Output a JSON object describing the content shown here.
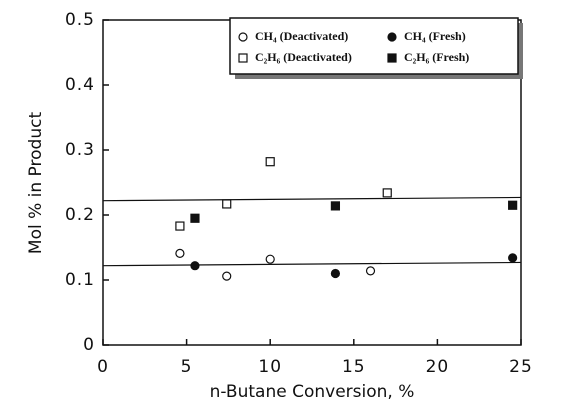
{
  "chart_data": {
    "type": "scatter",
    "xlabel": "n-Butane Conversion, %",
    "ylabel": "Mol % in Product",
    "xlim": [
      0,
      25
    ],
    "xticks": [
      0,
      5,
      10,
      15,
      20,
      25
    ],
    "ylim": [
      0,
      0.5
    ],
    "yticks": [
      0,
      0.1,
      0.2,
      0.3,
      0.4,
      0.5
    ],
    "series": [
      {
        "name": "CH₄ (Deactivated)",
        "marker": "open-circle",
        "color": "#111",
        "x": [
          4.6,
          7.4,
          10,
          16
        ],
        "values": [
          0.141,
          0.106,
          0.132,
          0.114
        ]
      },
      {
        "name": "CH₄ (Fresh)",
        "marker": "filled-circle",
        "color": "#111",
        "x": [
          5.5,
          13.9,
          24.5
        ],
        "values": [
          0.122,
          0.11,
          0.134
        ]
      },
      {
        "name": "C₂H₆ (Deactivated)",
        "marker": "open-square",
        "color": "#111",
        "x": [
          4.6,
          7.4,
          10,
          17
        ],
        "values": [
          0.183,
          0.217,
          0.282,
          0.234
        ]
      },
      {
        "name": "C₂H₆ (Fresh)",
        "marker": "filled-square",
        "color": "#111",
        "x": [
          5.5,
          13.9,
          24.5
        ],
        "values": [
          0.195,
          0.214,
          0.215
        ]
      }
    ],
    "lines": [
      {
        "x": [
          0,
          25
        ],
        "values": [
          0.122,
          0.127
        ]
      },
      {
        "x": [
          0,
          25
        ],
        "values": [
          0.222,
          0.227
        ]
      }
    ]
  }
}
